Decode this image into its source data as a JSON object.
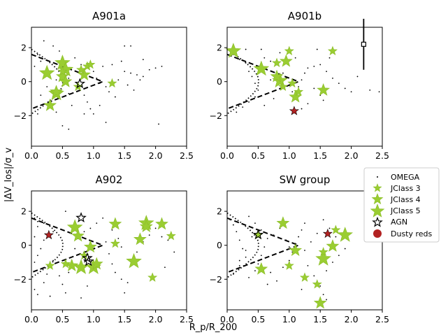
{
  "figure": {
    "xlabel": "R_p/R_200",
    "ylabel": "|ΔV_los|/σ_v",
    "xlim": [
      0,
      2.5
    ],
    "ylim": [
      -3.8,
      3.2
    ],
    "xticks": [
      "0.0",
      "0.5",
      "1.0",
      "1.5",
      "2.0",
      "2.5"
    ],
    "xtick_values": [
      0,
      0.5,
      1.0,
      1.5,
      2.0,
      2.5
    ],
    "yticks": [
      "2",
      "0",
      "−2"
    ],
    "ytick_values": [
      2,
      0,
      -2
    ]
  },
  "colors": {
    "jclass": "#9acd32",
    "jclass_edge": "#8bbd28",
    "dusty": "#b22222",
    "agn_edge": "#000000"
  },
  "legend": {
    "items": [
      {
        "label": "OMEGA",
        "marker": "dot"
      },
      {
        "label": "JClass 3",
        "marker": "star-s"
      },
      {
        "label": "JClass 4",
        "marker": "star-m"
      },
      {
        "label": "JClass 5",
        "marker": "star-l"
      },
      {
        "label": "AGN",
        "marker": "star-open"
      },
      {
        "label": "Dusty reds",
        "marker": "circle"
      }
    ]
  },
  "chart_data": [
    {
      "type": "scatter",
      "title": "A901a",
      "error_bar": null,
      "omega": [
        [
          0.1,
          1.6
        ],
        [
          0.15,
          1.2
        ],
        [
          0.05,
          0.9
        ],
        [
          0.2,
          0.5
        ],
        [
          0.3,
          0.3
        ],
        [
          0.4,
          0.1
        ],
        [
          0.6,
          0.2
        ],
        [
          0.75,
          -0.4
        ],
        [
          0.85,
          -0.8
        ],
        [
          0.9,
          -1.2
        ],
        [
          0.6,
          -0.7
        ],
        [
          0.4,
          -1.8
        ],
        [
          0.3,
          -1.1
        ],
        [
          0.15,
          -0.8
        ],
        [
          0.1,
          -1.9
        ],
        [
          0.5,
          -2.6
        ],
        [
          0.6,
          -2.8
        ],
        [
          0.95,
          -1.6
        ],
        [
          1.0,
          -1.9
        ],
        [
          1.1,
          -1.4
        ],
        [
          1.2,
          -0.3
        ],
        [
          1.4,
          0.1
        ],
        [
          1.5,
          0.6
        ],
        [
          1.6,
          0.5
        ],
        [
          1.7,
          0.4
        ],
        [
          1.8,
          0.3
        ],
        [
          1.9,
          0.7
        ],
        [
          2.0,
          0.8
        ],
        [
          2.1,
          0.9
        ],
        [
          1.3,
          1.0
        ],
        [
          1.45,
          1.2
        ],
        [
          1.5,
          2.1
        ],
        [
          1.6,
          2.1
        ],
        [
          1.8,
          1.3
        ],
        [
          2.05,
          -2.5
        ],
        [
          1.2,
          -2.4
        ],
        [
          0.35,
          2.1
        ],
        [
          0.45,
          1.8
        ],
        [
          0.7,
          1.4
        ],
        [
          0.8,
          1.0
        ],
        [
          1.0,
          0.6
        ],
        [
          1.05,
          0.2
        ],
        [
          1.1,
          -0.1
        ],
        [
          1.25,
          -0.6
        ],
        [
          1.35,
          -0.9
        ],
        [
          1.55,
          -0.2
        ],
        [
          1.65,
          -0.5
        ],
        [
          1.75,
          0.1
        ],
        [
          0.25,
          -0.3
        ],
        [
          0.55,
          0.7
        ],
        [
          0.65,
          -1.4
        ],
        [
          0.85,
          -1.9
        ],
        [
          1.15,
          0.9
        ],
        [
          0.2,
          2.4
        ]
      ],
      "jclass3": [
        [
          0.5,
          0.6
        ],
        [
          0.9,
          0.9
        ],
        [
          0.95,
          1.0
        ],
        [
          1.3,
          -0.1
        ],
        [
          0.8,
          0.7
        ],
        [
          0.75,
          -0.3
        ]
      ],
      "jclass4": [
        [
          0.3,
          -1.4
        ],
        [
          0.5,
          0.3
        ],
        [
          0.55,
          0.0
        ],
        [
          0.85,
          0.4
        ],
        [
          0.4,
          -0.6
        ]
      ],
      "jclass5": [
        [
          0.25,
          0.5
        ],
        [
          0.5,
          1.1
        ],
        [
          0.4,
          -0.7
        ],
        [
          0.55,
          0.7
        ]
      ],
      "agn": [
        [
          0.78,
          -0.12
        ]
      ],
      "dusty": []
    },
    {
      "type": "scatter",
      "title": "A901b",
      "error_bar": {
        "x": 2.2,
        "y": 2.2,
        "yerr": 1.5
      },
      "omega": [
        [
          0.1,
          1.6
        ],
        [
          0.2,
          1.3
        ],
        [
          0.3,
          1.1
        ],
        [
          0.35,
          0.6
        ],
        [
          0.4,
          0.3
        ],
        [
          0.45,
          -0.1
        ],
        [
          0.5,
          -0.5
        ],
        [
          0.45,
          -0.9
        ],
        [
          0.35,
          -1.2
        ],
        [
          0.25,
          -1.5
        ],
        [
          0.15,
          -1.8
        ],
        [
          0.6,
          1.4
        ],
        [
          0.7,
          1.2
        ],
        [
          0.8,
          1.0
        ],
        [
          0.9,
          0.5
        ],
        [
          0.95,
          0.2
        ],
        [
          1.0,
          -0.2
        ],
        [
          1.05,
          -0.6
        ],
        [
          1.1,
          -1.0
        ],
        [
          1.15,
          -0.3
        ],
        [
          1.2,
          0.1
        ],
        [
          1.25,
          0.5
        ],
        [
          1.3,
          0.8
        ],
        [
          1.4,
          0.9
        ],
        [
          1.5,
          1.0
        ],
        [
          1.6,
          0.6
        ],
        [
          1.7,
          0.2
        ],
        [
          1.8,
          -0.1
        ],
        [
          1.9,
          -0.4
        ],
        [
          2.0,
          -0.6
        ],
        [
          2.1,
          0.3
        ],
        [
          2.3,
          -0.5
        ],
        [
          2.45,
          -0.6
        ],
        [
          1.4,
          -0.4
        ],
        [
          1.5,
          -0.8
        ],
        [
          1.55,
          -1.1
        ],
        [
          1.3,
          -1.3
        ],
        [
          1.2,
          -1.6
        ],
        [
          0.75,
          -1.0
        ],
        [
          0.65,
          -0.7
        ],
        [
          0.6,
          -1.4
        ],
        [
          0.85,
          1.7
        ],
        [
          1.0,
          1.8
        ],
        [
          1.1,
          1.4
        ],
        [
          0.55,
          1.9
        ],
        [
          0.3,
          1.9
        ],
        [
          1.45,
          1.9
        ],
        [
          1.65,
          1.4
        ],
        [
          0.85,
          -0.4
        ],
        [
          0.7,
          0.1
        ]
      ],
      "jclass3": [
        [
          0.8,
          1.1
        ],
        [
          1.0,
          1.8
        ],
        [
          1.05,
          -0.1
        ],
        [
          1.15,
          -0.6
        ],
        [
          1.7,
          1.8
        ],
        [
          0.9,
          -0.3
        ]
      ],
      "jclass4": [
        [
          0.8,
          0.3
        ],
        [
          0.95,
          1.2
        ],
        [
          1.1,
          -0.9
        ],
        [
          1.55,
          -0.5
        ]
      ],
      "jclass5": [
        [
          0.1,
          1.8
        ],
        [
          0.55,
          0.75
        ],
        [
          0.85,
          0.05
        ]
      ],
      "agn": [],
      "dusty": [
        [
          1.08,
          -1.73
        ]
      ]
    },
    {
      "type": "scatter",
      "title": "A902",
      "error_bar": null,
      "omega": [
        [
          0.05,
          1.6
        ],
        [
          0.1,
          1.4
        ],
        [
          0.2,
          1.3
        ],
        [
          0.1,
          1.1
        ],
        [
          0.05,
          0.5
        ],
        [
          0.2,
          0.3
        ],
        [
          0.15,
          -0.2
        ],
        [
          0.1,
          -0.6
        ],
        [
          0.05,
          -1.0
        ],
        [
          0.15,
          -1.4
        ],
        [
          0.25,
          -1.7
        ],
        [
          0.05,
          -2.6
        ],
        [
          0.1,
          -2.9
        ],
        [
          0.2,
          -2.2
        ],
        [
          0.35,
          -0.9
        ],
        [
          0.45,
          -1.8
        ],
        [
          0.5,
          -2.3
        ],
        [
          0.55,
          -2.8
        ],
        [
          0.6,
          -1.6
        ],
        [
          0.65,
          -0.9
        ],
        [
          0.7,
          -0.2
        ],
        [
          0.75,
          0.4
        ],
        [
          0.85,
          0.8
        ],
        [
          0.95,
          1.0
        ],
        [
          1.05,
          1.3
        ],
        [
          1.15,
          1.6
        ],
        [
          1.2,
          0.2
        ],
        [
          1.25,
          -0.5
        ],
        [
          1.3,
          -1.1
        ],
        [
          1.35,
          -1.6
        ],
        [
          1.45,
          -2.0
        ],
        [
          1.5,
          -2.8
        ],
        [
          1.55,
          -2.2
        ],
        [
          1.6,
          -1.2
        ],
        [
          1.7,
          -0.4
        ],
        [
          1.8,
          0.2
        ],
        [
          1.9,
          0.6
        ],
        [
          2.0,
          1.0
        ],
        [
          2.1,
          0.5
        ],
        [
          2.2,
          0.3
        ],
        [
          2.3,
          -0.4
        ],
        [
          2.15,
          -1.3
        ],
        [
          1.3,
          0.9
        ],
        [
          1.4,
          0.4
        ],
        [
          1.45,
          -0.1
        ],
        [
          0.9,
          -2.4
        ],
        [
          0.8,
          -3.1
        ],
        [
          0.3,
          -3.0
        ],
        [
          0.55,
          2.0
        ],
        [
          0.35,
          0.8
        ]
      ],
      "jclass3": [
        [
          0.3,
          -1.2
        ],
        [
          0.55,
          -1.1
        ],
        [
          1.35,
          0.1
        ],
        [
          1.95,
          -1.9
        ],
        [
          2.25,
          0.55
        ],
        [
          0.85,
          -0.6
        ]
      ],
      "jclass4": [
        [
          0.65,
          -1.2
        ],
        [
          0.95,
          -0.1
        ],
        [
          1.05,
          -1.1
        ],
        [
          1.35,
          1.25
        ],
        [
          1.75,
          0.35
        ],
        [
          1.85,
          1.1
        ],
        [
          2.1,
          1.25
        ],
        [
          0.75,
          0.55
        ]
      ],
      "jclass5": [
        [
          0.7,
          1.05
        ],
        [
          0.8,
          -1.3
        ],
        [
          1.0,
          -1.3
        ],
        [
          1.65,
          -0.95
        ],
        [
          1.85,
          1.3
        ]
      ],
      "agn": [
        [
          0.8,
          1.62
        ],
        [
          0.9,
          -0.75
        ],
        [
          0.92,
          -0.95
        ]
      ],
      "dusty": [
        [
          0.28,
          0.6
        ]
      ]
    },
    {
      "type": "scatter",
      "title": "SW group",
      "error_bar": null,
      "omega": [
        [
          0.05,
          1.5
        ],
        [
          0.1,
          1.2
        ],
        [
          0.15,
          0.8
        ],
        [
          0.2,
          0.3
        ],
        [
          0.25,
          -0.2
        ],
        [
          0.3,
          -0.7
        ],
        [
          0.2,
          -1.2
        ],
        [
          0.1,
          -1.7
        ],
        [
          0.35,
          -1.9
        ],
        [
          0.45,
          -1.5
        ],
        [
          0.5,
          -1.1
        ],
        [
          0.55,
          -0.6
        ],
        [
          0.6,
          -0.1
        ],
        [
          0.65,
          0.4
        ],
        [
          0.55,
          0.9
        ],
        [
          0.45,
          1.3
        ],
        [
          0.35,
          1.7
        ],
        [
          0.7,
          -1.6
        ],
        [
          0.8,
          -2.1
        ],
        [
          0.9,
          -1.3
        ],
        [
          1.0,
          -0.9
        ],
        [
          1.05,
          -0.4
        ],
        [
          1.1,
          0.1
        ],
        [
          1.15,
          0.5
        ],
        [
          1.2,
          0.9
        ],
        [
          1.25,
          1.3
        ],
        [
          1.3,
          -1.2
        ],
        [
          1.4,
          -1.8
        ],
        [
          1.5,
          -2.4
        ],
        [
          1.55,
          -2.9
        ],
        [
          1.6,
          -1.5
        ],
        [
          1.7,
          -1.0
        ],
        [
          1.8,
          -0.6
        ],
        [
          1.9,
          -0.2
        ],
        [
          1.75,
          0.5
        ],
        [
          1.65,
          1.0
        ],
        [
          1.55,
          1.5
        ],
        [
          1.45,
          0.7
        ],
        [
          1.35,
          0.2
        ],
        [
          1.25,
          -0.3
        ],
        [
          0.75,
          0.6
        ],
        [
          0.85,
          1.0
        ],
        [
          0.95,
          0.3
        ],
        [
          1.0,
          -0.1
        ],
        [
          0.4,
          0.5
        ],
        [
          0.3,
          -0.3
        ],
        [
          0.2,
          -0.9
        ],
        [
          1.6,
          -3.2
        ],
        [
          1.2,
          -2.6
        ],
        [
          0.65,
          -2.3
        ]
      ],
      "jclass3": [
        [
          0.5,
          0.6
        ],
        [
          1.0,
          -1.2
        ],
        [
          1.25,
          -1.9
        ],
        [
          1.45,
          -2.3
        ],
        [
          1.55,
          -0.4
        ],
        [
          1.75,
          0.9
        ]
      ],
      "jclass4": [
        [
          0.9,
          1.3
        ],
        [
          1.1,
          -0.3
        ],
        [
          1.5,
          -3.4
        ],
        [
          1.7,
          -0.05
        ],
        [
          0.55,
          -1.4
        ]
      ],
      "jclass5": [
        [
          1.55,
          -0.8
        ],
        [
          1.9,
          0.6
        ]
      ],
      "agn": [
        [
          0.5,
          0.62
        ]
      ],
      "dusty": [
        [
          1.62,
          0.68
        ]
      ]
    }
  ]
}
